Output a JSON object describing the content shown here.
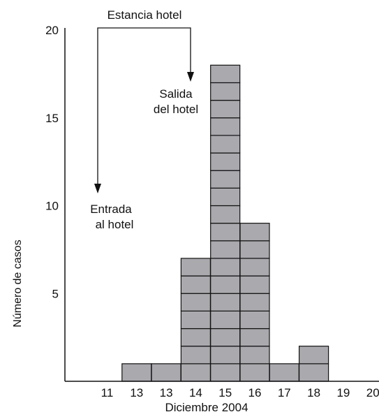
{
  "chart_data": {
    "type": "bar",
    "subtype": "epidemic-curve-stacked-boxes",
    "xlabel": "Diciembre 2004",
    "ylabel": "Número de casos",
    "categories": [
      "11",
      "13",
      "13",
      "14",
      "15",
      "16",
      "17",
      "18",
      "19",
      "20"
    ],
    "values": [
      0,
      1,
      1,
      7,
      18,
      9,
      1,
      2,
      0,
      0
    ],
    "ylim": [
      0,
      21
    ],
    "yticks": [
      5,
      10,
      15,
      20
    ],
    "grid": false,
    "legend": "none",
    "colors": {
      "bar_fill": "#a9a9ae",
      "bar_stroke": "#111111"
    },
    "annotations": {
      "stay_label": "Estancia hotel",
      "entry_label_line1": "Entrada",
      "entry_label_line2": "al hotel",
      "exit_label_line1": "Salida",
      "exit_label_line2": "del hotel"
    }
  }
}
